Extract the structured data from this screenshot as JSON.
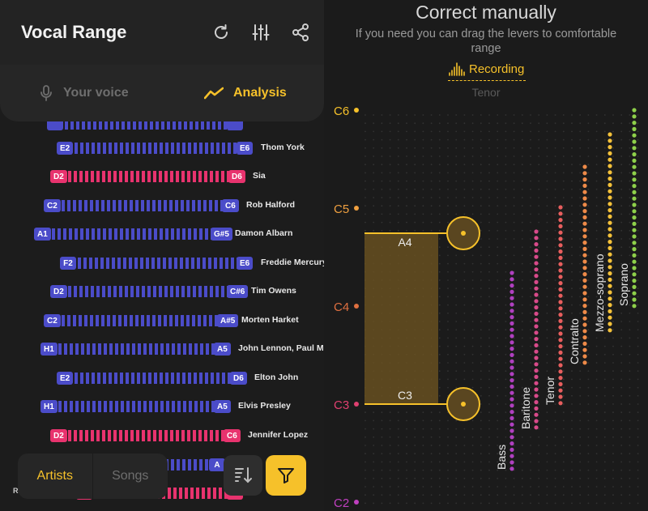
{
  "header": {
    "title": "Vocal Range"
  },
  "icons": {
    "refresh": "refresh-icon",
    "equalizer": "sliders-icon",
    "share": "share-icon"
  },
  "tabs": [
    {
      "label": "Your voice",
      "icon": "microphone-icon",
      "active": false
    },
    {
      "label": "Analysis",
      "icon": "trend-line-icon",
      "active": true
    }
  ],
  "colors": {
    "accent": "#f6c12a",
    "male": "#4b4cc9",
    "female": "#e8336e"
  },
  "artists": [
    {
      "low": "",
      "high": "",
      "name": "",
      "color": "blue"
    },
    {
      "low": "E2",
      "high": "E6",
      "name": "Thom York",
      "color": "blue"
    },
    {
      "low": "D2",
      "high": "D6",
      "name": "Sia",
      "color": "pink"
    },
    {
      "low": "C2",
      "high": "C6",
      "name": "Rob Halford",
      "color": "blue"
    },
    {
      "low": "A1",
      "high": "G#5",
      "name": "Damon Albarn",
      "color": "blue"
    },
    {
      "low": "F2",
      "high": "E6",
      "name": "Freddie Mercury",
      "color": "blue"
    },
    {
      "low": "D2",
      "high": "C#6",
      "name": "Tim Owens",
      "color": "blue"
    },
    {
      "low": "C2",
      "high": "A#5",
      "name": "Morten Harket",
      "color": "blue"
    },
    {
      "low": "H1",
      "high": "A5",
      "name": "John Lennon, Paul McC",
      "color": "blue"
    },
    {
      "low": "E2",
      "high": "D6",
      "name": "Elton John",
      "color": "blue"
    },
    {
      "low": "H1",
      "high": "A5",
      "name": "Elvis Presley",
      "color": "blue"
    },
    {
      "low": "D2",
      "high": "C6",
      "name": "Jennifer Lopez",
      "color": "pink"
    },
    {
      "low": "",
      "high": "A",
      "name": "",
      "color": "blue"
    },
    {
      "low": "",
      "high": "",
      "name": "",
      "color": "pink"
    }
  ],
  "bottom_tabs": [
    {
      "label": "Artists",
      "active": true
    },
    {
      "label": "Songs",
      "active": false
    }
  ],
  "stray_text": "R",
  "buttons": {
    "sort": "sort-icon",
    "filter": "filter-icon"
  },
  "correction": {
    "title": "Correct manually",
    "subtitle": "If you need you can drag the levers to comfortable range",
    "recording_label": "Recording",
    "detected_voice": "Tenor",
    "upper_note": "A4",
    "lower_note": "C3",
    "y_labels": [
      {
        "label": "C6",
        "color": "#f6c12a"
      },
      {
        "label": "C5",
        "color": "#f0a040"
      },
      {
        "label": "C4",
        "color": "#e07040"
      },
      {
        "label": "C3",
        "color": "#e04070"
      },
      {
        "label": "C2",
        "color": "#c040c0"
      }
    ],
    "voice_types": [
      {
        "name": "Bass",
        "color": "#b040c0"
      },
      {
        "name": "Baritone",
        "color": "#d84a8a"
      },
      {
        "name": "Tenor",
        "color": "#e85e5e"
      },
      {
        "name": "Contralto",
        "color": "#ee8a48"
      },
      {
        "name": "Mezzo-soprano",
        "color": "#f5c23a"
      },
      {
        "name": "Soprano",
        "color": "#8ed04a"
      }
    ]
  }
}
